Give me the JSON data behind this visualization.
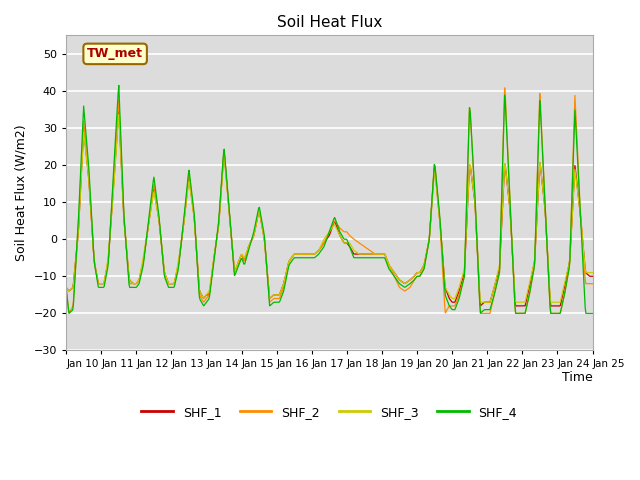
{
  "title": "Soil Heat Flux",
  "xlabel": "Time",
  "ylabel": "Soil Heat Flux (W/m2)",
  "ylim": [
    -30,
    55
  ],
  "yticks": [
    -30,
    -20,
    -10,
    0,
    10,
    20,
    30,
    40,
    50
  ],
  "bg_color": "#dcdcdc",
  "series_colors": [
    "#cc0000",
    "#ff8c00",
    "#cccc00",
    "#00bb00"
  ],
  "series_names": [
    "SHF_1",
    "SHF_2",
    "SHF_3",
    "SHF_4"
  ],
  "annotation_text": "TW_met",
  "x_tick_labels": [
    "Jan 10",
    "Jan 11",
    "Jan 12",
    "Jan 13",
    "Jan 14",
    "Jan 15",
    "Jan 16",
    "Jan 17",
    "Jan 18",
    "Jan 19",
    "Jan 20",
    "Jan 21",
    "Jan 22",
    "Jan 23",
    "Jan 24",
    "Jan 25"
  ],
  "n_days": 15,
  "pts_per_day": 48,
  "kp_t_base": [
    0.0,
    0.08,
    0.2,
    0.35,
    0.5,
    0.65,
    0.8,
    0.92,
    1.0,
    1.08,
    1.2,
    1.35,
    1.5,
    1.65,
    1.8,
    1.92,
    2.0,
    2.08,
    2.2,
    2.35,
    2.5,
    2.65,
    2.8,
    2.92,
    3.0,
    3.08,
    3.2,
    3.35,
    3.5,
    3.65,
    3.8,
    3.92,
    4.0,
    4.08,
    4.2,
    4.35,
    4.5,
    4.65,
    4.8,
    4.92,
    5.0,
    5.08,
    5.2,
    5.35,
    5.5,
    5.65,
    5.8,
    5.92,
    6.0,
    6.08,
    6.2,
    6.35,
    6.5,
    6.65,
    6.8,
    6.92,
    7.0,
    7.08,
    7.2,
    7.35,
    7.5,
    7.65,
    7.8,
    7.92,
    8.0,
    8.08,
    8.2,
    8.35,
    8.5,
    8.65,
    8.8,
    8.92,
    9.0,
    9.08,
    9.2,
    9.35,
    9.5,
    9.65,
    9.8,
    9.92,
    10.0,
    10.08,
    10.2,
    10.35,
    10.5,
    10.65,
    10.8,
    10.92,
    11.0,
    11.08,
    11.2,
    11.35,
    11.5,
    11.65,
    11.8,
    11.92,
    12.0,
    12.08,
    12.2,
    12.35,
    12.5,
    12.65,
    12.8,
    12.92,
    13.0,
    13.08,
    13.2,
    13.35,
    13.5,
    13.65,
    13.8,
    13.92,
    14.0,
    14.08,
    14.2,
    14.35,
    14.5,
    14.65,
    14.8,
    14.92,
    15.0
  ],
  "kp_v_shf4": [
    -13,
    -20,
    -19,
    5,
    36,
    19,
    -6,
    -13,
    -13,
    -13,
    -7,
    18,
    42,
    6,
    -13,
    -13,
    -13,
    -12,
    -7,
    5,
    17,
    6,
    -10,
    -13,
    -13,
    -13,
    -8,
    5,
    19,
    7,
    -16,
    -18,
    -17,
    -16,
    -7,
    5,
    25,
    8,
    -10,
    -7,
    -5,
    -7,
    -3,
    2,
    9,
    1,
    -18,
    -17,
    -17,
    -17,
    -14,
    -7,
    -5,
    -5,
    -5,
    -5,
    -5,
    -5,
    -4,
    -2,
    2,
    6,
    2,
    0,
    0,
    -2,
    -5,
    -5,
    -5,
    -5,
    -5,
    -5,
    -5,
    -5,
    -8,
    -10,
    -12,
    -13,
    -12,
    -11,
    -10,
    -10,
    -8,
    0,
    21,
    6,
    -15,
    -18,
    -19,
    -19,
    -16,
    -10,
    37,
    12,
    -20,
    -19,
    -19,
    -19,
    -15,
    -9,
    40,
    10,
    -20,
    -20,
    -20,
    -20,
    -15,
    -7,
    38,
    9,
    -20,
    -20,
    -20,
    -20,
    -15,
    -7,
    35,
    8,
    -20,
    -20,
    -20
  ],
  "kp_v_shf1": [
    -13,
    -14,
    -13,
    2,
    30,
    16,
    -6,
    -12,
    -12,
    -12,
    -6,
    14,
    35,
    5,
    -11,
    -12,
    -12,
    -11,
    -6,
    4,
    14,
    5,
    -9,
    -12,
    -12,
    -12,
    -7,
    4,
    17,
    6,
    -14,
    -16,
    -15,
    -15,
    -6,
    4,
    24,
    7,
    -9,
    -6,
    -4,
    -6,
    -2,
    1,
    8,
    0,
    -16,
    -15,
    -15,
    -15,
    -12,
    -6,
    -4,
    -4,
    -4,
    -4,
    -4,
    -4,
    -3,
    -1,
    1,
    5,
    1,
    -1,
    -1,
    -2,
    -4,
    -4,
    -4,
    -4,
    -4,
    -4,
    -4,
    -4,
    -7,
    -9,
    -11,
    -12,
    -11,
    -10,
    -9,
    -9,
    -7,
    0,
    20,
    5,
    -13,
    -16,
    -17,
    -17,
    -14,
    -9,
    21,
    10,
    -18,
    -17,
    -17,
    -17,
    -13,
    -8,
    21,
    8,
    -18,
    -18,
    -18,
    -18,
    -13,
    -6,
    21,
    8,
    -18,
    -18,
    -18,
    -18,
    -13,
    -6,
    20,
    7,
    -9,
    -10,
    -10
  ],
  "kp_v_shf2": [
    -13,
    -20,
    -18,
    4,
    32,
    17,
    -6,
    -12,
    -12,
    -12,
    -6,
    16,
    38,
    6,
    -12,
    -12,
    -12,
    -11,
    -6,
    4,
    15,
    5,
    -9,
    -12,
    -12,
    -12,
    -7,
    4,
    18,
    6,
    -15,
    -17,
    -16,
    -15,
    -6,
    4,
    24,
    7,
    -9,
    -6,
    -4,
    -6,
    -2,
    1,
    8,
    0,
    -17,
    -16,
    -16,
    -16,
    -13,
    -6,
    -4,
    -4,
    -4,
    -4,
    -4,
    -4,
    -3,
    -1,
    2,
    5,
    3,
    2,
    2,
    1,
    0,
    -1,
    -2,
    -3,
    -4,
    -4,
    -4,
    -4,
    -7,
    -10,
    -13,
    -14,
    -13,
    -11,
    -10,
    -10,
    -8,
    0,
    21,
    5,
    -20,
    -18,
    -18,
    -18,
    -15,
    -10,
    37,
    11,
    -20,
    -20,
    -20,
    -20,
    -15,
    -9,
    42,
    10,
    -20,
    -20,
    -20,
    -20,
    -15,
    -7,
    40,
    9,
    -20,
    -20,
    -20,
    -20,
    -15,
    -7,
    39,
    8,
    -12,
    -12,
    -12
  ],
  "kp_v_shf3": [
    -13,
    -14,
    -13,
    2,
    29,
    16,
    -6,
    -12,
    -12,
    -12,
    -5,
    13,
    34,
    5,
    -11,
    -12,
    -12,
    -11,
    -5,
    4,
    13,
    5,
    -9,
    -12,
    -12,
    -12,
    -6,
    4,
    16,
    6,
    -14,
    -16,
    -15,
    -14,
    -6,
    4,
    23,
    7,
    -9,
    -6,
    -4,
    -5,
    -2,
    1,
    8,
    0,
    -16,
    -15,
    -15,
    -15,
    -12,
    -6,
    -4,
    -4,
    -4,
    -4,
    -4,
    -4,
    -3,
    0,
    2,
    4,
    1,
    -1,
    -1,
    -1,
    -3,
    -4,
    -4,
    -4,
    -4,
    -4,
    -4,
    -4,
    -7,
    -9,
    -11,
    -12,
    -11,
    -10,
    -9,
    -9,
    -7,
    0,
    19,
    5,
    -13,
    -15,
    -16,
    -16,
    -13,
    -8,
    21,
    10,
    -17,
    -17,
    -17,
    -17,
    -13,
    -7,
    21,
    8,
    -17,
    -17,
    -17,
    -17,
    -12,
    -6,
    21,
    8,
    -17,
    -17,
    -17,
    -17,
    -12,
    -6,
    19,
    7,
    -9,
    -9,
    -9
  ]
}
